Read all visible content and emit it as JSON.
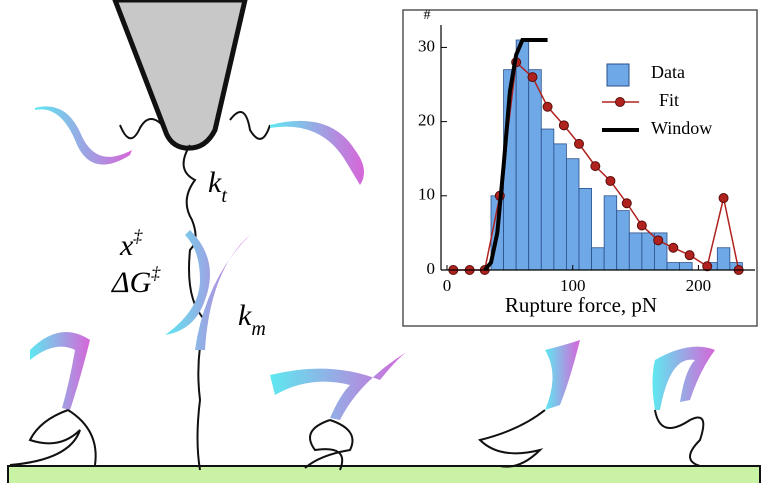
{
  "illustration": {
    "labels": [
      {
        "symbol": "k",
        "subscript": "t"
      },
      {
        "symbol": "x",
        "superscript": "‡"
      },
      {
        "symbol": "ΔG",
        "superscript": "‡"
      },
      {
        "symbol": "k",
        "subscript": "m"
      }
    ]
  },
  "chart_data": {
    "type": "histogram",
    "name": "Data",
    "color": "#6fa8e6",
    "xlabel": "Rupture force, pN",
    "ylabel": "#",
    "bins": [
      35,
      45,
      55,
      65,
      75,
      85,
      95,
      105,
      115,
      125,
      135,
      145,
      155,
      165,
      175,
      185,
      195,
      205,
      215,
      225,
      235
    ],
    "counts": [
      10,
      27,
      31,
      27,
      19,
      17,
      15,
      11,
      3,
      10,
      8,
      5,
      5,
      5,
      1,
      1,
      0,
      1,
      3,
      1
    ],
    "series": [
      {
        "name": "Fit",
        "color": "#b0221e",
        "marker": "circle",
        "x": [
          5,
          18,
          30,
          42,
          55,
          68,
          80,
          93,
          105,
          118,
          130,
          143,
          155,
          168,
          180,
          193,
          207,
          220,
          232
        ],
        "values": [
          0,
          0,
          0,
          10,
          28,
          26,
          22,
          19.5,
          17,
          14,
          12,
          9,
          6,
          4,
          3,
          2,
          0.5,
          9.7,
          0
        ]
      },
      {
        "name": "Window",
        "color": "#000000",
        "marker": "none",
        "x": [
          30,
          35,
          40,
          45,
          50,
          55,
          60,
          65,
          70,
          80
        ],
        "values": [
          0,
          1,
          5,
          14,
          24,
          29,
          31,
          31,
          31,
          31
        ]
      }
    ],
    "xlim": [
      0,
      245
    ],
    "ylim": [
      0,
      31
    ],
    "xticks": [
      0,
      100,
      200
    ],
    "yticks": [
      0,
      10,
      20,
      30
    ],
    "legend": "upper-right"
  }
}
